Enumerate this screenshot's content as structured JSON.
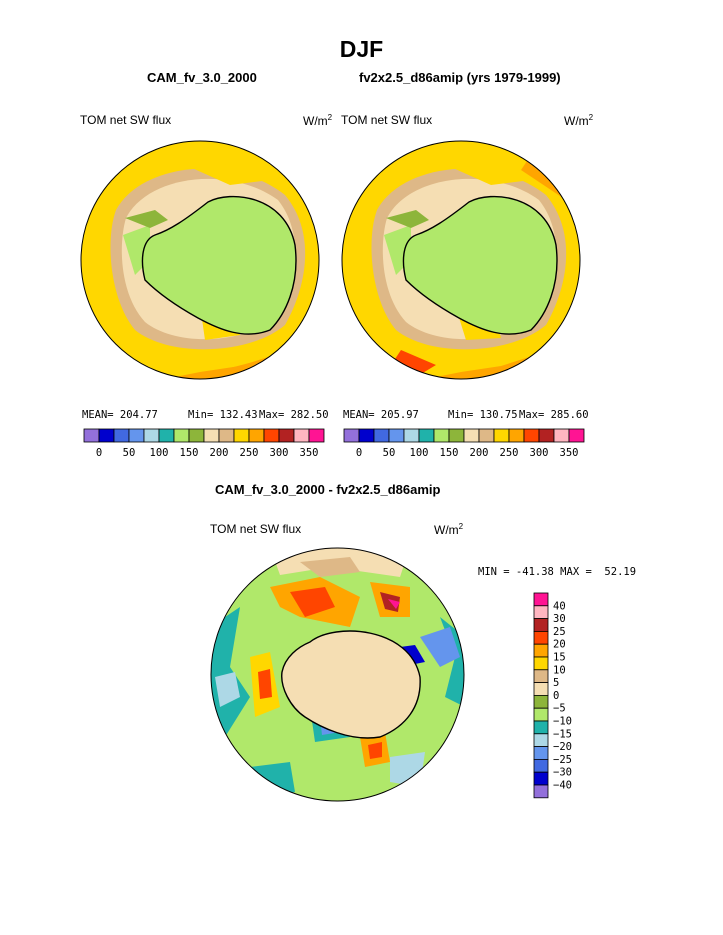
{
  "title": "DJF",
  "panels": [
    {
      "case": "CAM_fv_3.0_2000",
      "variable": "TOM net SW flux",
      "units_base": "W/m",
      "units_exp": "2",
      "stats": {
        "mean": "MEAN= 204.77",
        "min": "Min= 132.43",
        "max": "Max= 282.50"
      }
    },
    {
      "case": "fv2x2.5_d86amip (yrs 1979-1999)",
      "variable": "TOM net SW flux",
      "units_base": "W/m",
      "units_exp": "2",
      "stats": {
        "mean": "MEAN= 205.97",
        "min": "Min= 130.75",
        "max": "Max= 285.60"
      }
    }
  ],
  "top_colorbar": {
    "colors": [
      "#9370db",
      "#0000cd",
      "#4169e1",
      "#6495ed",
      "#add8e6",
      "#20b2aa",
      "#b0e86a",
      "#8db53a",
      "#f5deb3",
      "#deb887",
      "#ffd700",
      "#ffa500",
      "#ff4500",
      "#b22222",
      "#ffb6c1",
      "#ff1493"
    ],
    "tick_labels": [
      "0",
      "50",
      "100",
      "150",
      "200",
      "250",
      "300",
      "350"
    ]
  },
  "difference": {
    "title": "CAM_fv_3.0_2000 - fv2x2.5_d86amip",
    "variable": "TOM net SW flux",
    "units_base": "W/m",
    "units_exp": "2",
    "minmax": "MIN = -41.38 MAX =  52.19",
    "colorbar": {
      "colors": [
        "#ff1493",
        "#ffb6c1",
        "#b22222",
        "#ff4500",
        "#ffa500",
        "#ffd700",
        "#deb887",
        "#f5deb3",
        "#8db53a",
        "#b0e86a",
        "#20b2aa",
        "#add8e6",
        "#6495ed",
        "#4169e1",
        "#0000cd",
        "#9370db"
      ],
      "tick_labels": [
        "40",
        "30",
        "25",
        "20",
        "15",
        "10",
        "5",
        "0",
        "−5",
        "−10",
        "−15",
        "−20",
        "−25",
        "−30",
        "−40"
      ]
    }
  },
  "colors": {
    "ocean_yellow": "#ffd700",
    "ocean_orange": "#ffa500",
    "land_green": "#b0e86a",
    "tan": "#deb887",
    "wheat": "#f5deb3"
  }
}
